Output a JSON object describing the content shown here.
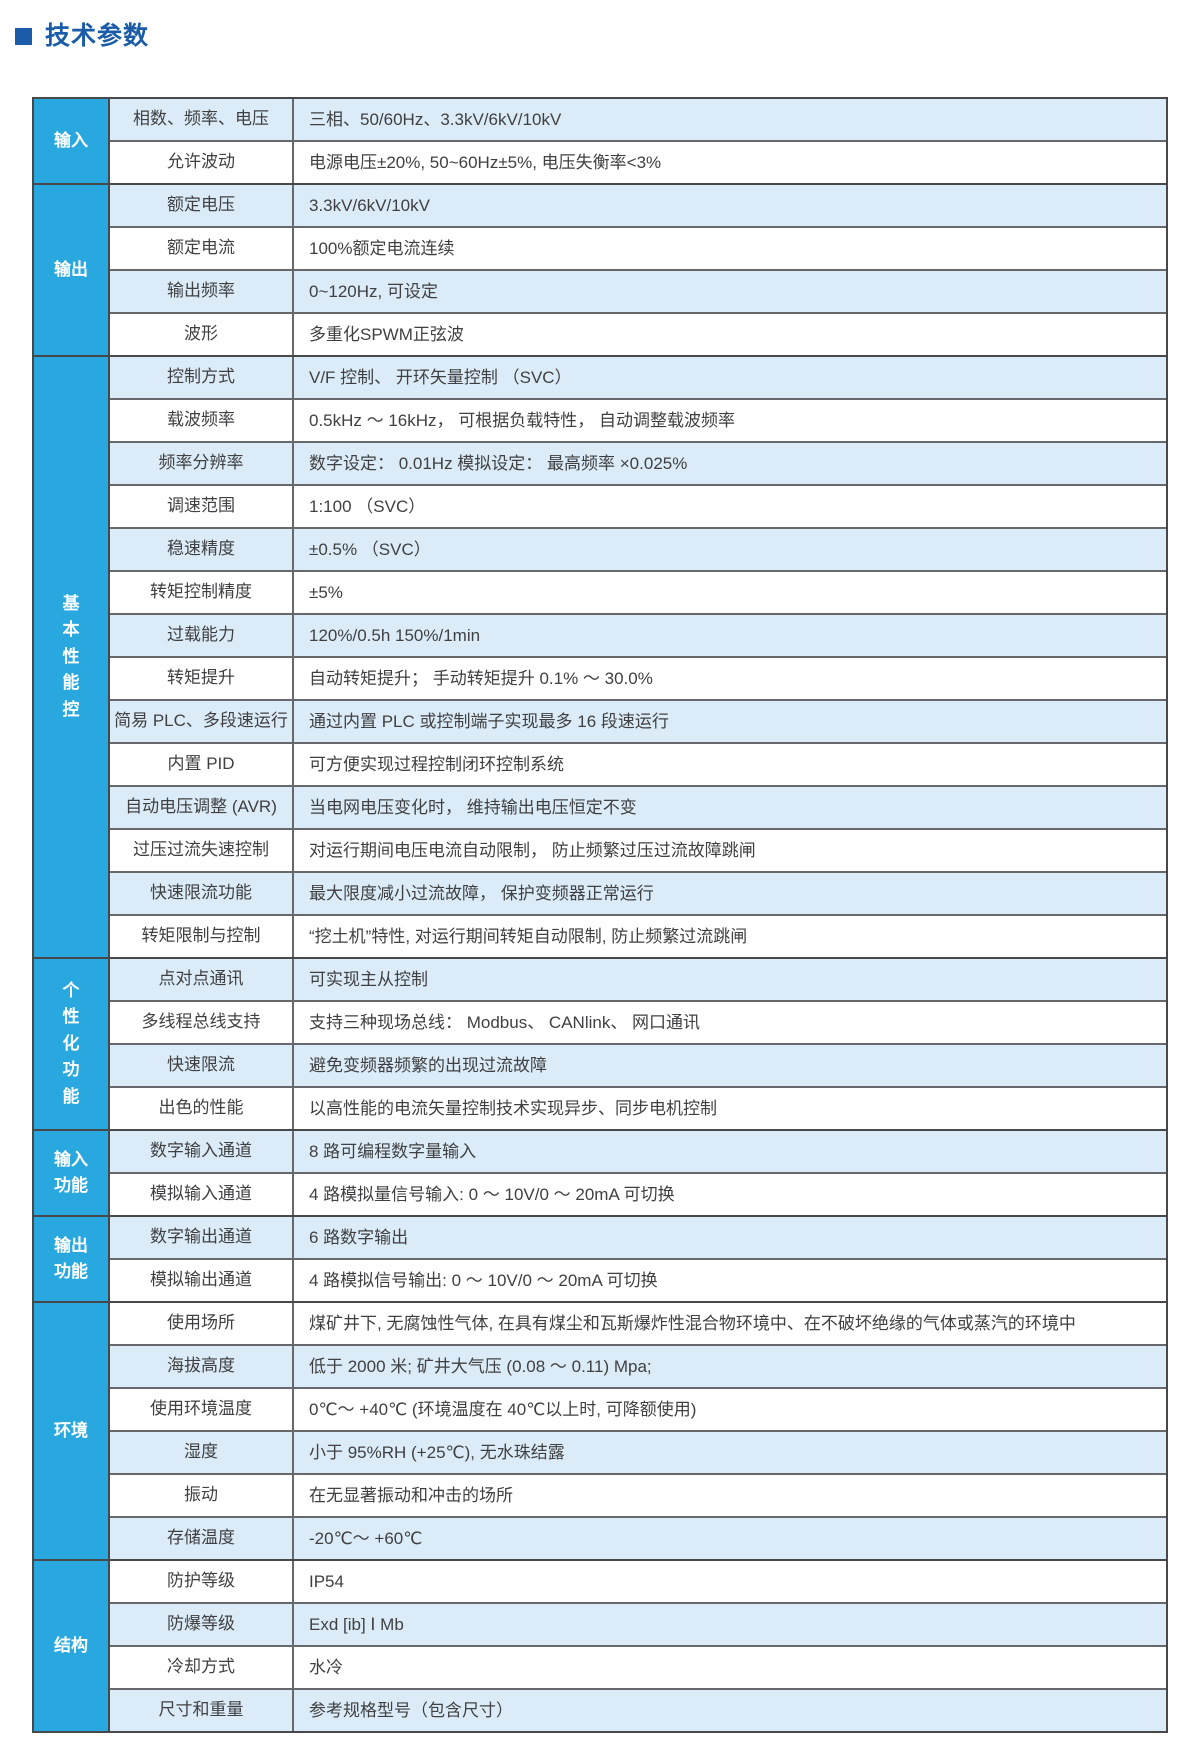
{
  "page": {
    "title": "技术参数"
  },
  "colors": {
    "title_blue": "#1a5ca8",
    "category_blue": "#29a8e0",
    "row_shade_blue": "#dbecf8",
    "border_dark": "#47484a",
    "border_inner": "#67686b",
    "text": "#404042"
  },
  "table": {
    "sections": [
      {
        "category": "输入",
        "category_lines": [
          "输入"
        ],
        "rows": [
          {
            "param": "相数、频率、电压",
            "value": "三相、50/60Hz、3.3kV/6kV/10kV",
            "shaded": true
          },
          {
            "param": "允许波动",
            "value": "电源电压±20%, 50~60Hz±5%, 电压失衡率<3%",
            "shaded": false
          }
        ]
      },
      {
        "category": "输出",
        "category_lines": [
          "输出"
        ],
        "rows": [
          {
            "param": "额定电压",
            "value": "3.3kV/6kV/10kV",
            "shaded": true
          },
          {
            "param": "额定电流",
            "value": "100%额定电流连续",
            "shaded": false
          },
          {
            "param": "输出频率",
            "value": "0~120Hz, 可设定",
            "shaded": true
          },
          {
            "param": "波形",
            "value": "多重化SPWM正弦波",
            "shaded": false
          }
        ]
      },
      {
        "category": "基本性能控",
        "category_lines": [
          "基",
          "本",
          "性",
          "能",
          "控"
        ],
        "rows": [
          {
            "param": "控制方式",
            "value": "V/F 控制、 开环矢量控制 （SVC）",
            "shaded": true
          },
          {
            "param": "载波频率",
            "value": "0.5kHz ～ 16kHz， 可根据负载特性， 自动调整载波频率",
            "shaded": false
          },
          {
            "param": "频率分辨率",
            "value": "数字设定： 0.01Hz 模拟设定： 最高频率 ×0.025%",
            "shaded": true
          },
          {
            "param": "调速范围",
            "value": "1:100 （SVC）",
            "shaded": false
          },
          {
            "param": "稳速精度",
            "value": "±0.5% （SVC）",
            "shaded": true
          },
          {
            "param": "转矩控制精度",
            "value": "±5%",
            "shaded": false
          },
          {
            "param": "过载能力",
            "value": "120%/0.5h  150%/1min",
            "shaded": true
          },
          {
            "param": "转矩提升",
            "value": "自动转矩提升； 手动转矩提升 0.1% ～ 30.0%",
            "shaded": false
          },
          {
            "param": "简易 PLC、多段速运行",
            "value": "通过内置 PLC 或控制端子实现最多 16 段速运行",
            "shaded": true
          },
          {
            "param": "内置 PID",
            "value": "可方便实现过程控制闭环控制系统",
            "shaded": false
          },
          {
            "param": "自动电压调整 (AVR)",
            "value": "当电网电压变化时， 维持输出电压恒定不变",
            "shaded": true
          },
          {
            "param": "过压过流失速控制",
            "value": "对运行期间电压电流自动限制， 防止频繁过压过流故障跳闸",
            "shaded": false
          },
          {
            "param": "快速限流功能",
            "value": "最大限度减小过流故障， 保护变频器正常运行",
            "shaded": true
          },
          {
            "param": "转矩限制与控制",
            "value": "“挖土机”特性, 对运行期间转矩自动限制, 防止频繁过流跳闸",
            "shaded": false
          }
        ]
      },
      {
        "category": "个性化功能",
        "category_lines": [
          "个",
          "性",
          "化",
          "功",
          "能"
        ],
        "rows": [
          {
            "param": "点对点通讯",
            "value": "可实现主从控制",
            "shaded": true
          },
          {
            "param": "多线程总线支持",
            "value": "支持三种现场总线： Modbus、 CANlink、 网口通讯",
            "shaded": false
          },
          {
            "param": "快速限流",
            "value": "避免变频器频繁的出现过流故障",
            "shaded": true
          },
          {
            "param": "出色的性能",
            "value": "以高性能的电流矢量控制技术实现异步、同步电机控制",
            "shaded": false
          }
        ]
      },
      {
        "category": "输入功能",
        "category_lines": [
          "输入",
          "功能"
        ],
        "rows": [
          {
            "param": "数字输入通道",
            "value": "8 路可编程数字量输入",
            "shaded": true
          },
          {
            "param": "模拟输入通道",
            "value": "4 路模拟量信号输入: 0 ～ 10V/0 ～ 20mA 可切换",
            "shaded": false
          }
        ]
      },
      {
        "category": "输出功能",
        "category_lines": [
          "输出",
          "功能"
        ],
        "rows": [
          {
            "param": "数字输出通道",
            "value": "6 路数字输出",
            "shaded": true
          },
          {
            "param": "模拟输出通道",
            "value": "4 路模拟信号输出: 0 ～ 10V/0 ～ 20mA 可切换",
            "shaded": false
          }
        ]
      },
      {
        "category": "环境",
        "category_lines": [
          "环境"
        ],
        "rows": [
          {
            "param": "使用场所",
            "value": "煤矿井下, 无腐蚀性气体, 在具有煤尘和瓦斯爆炸性混合物环境中、在不破坏绝缘的气体或蒸汽的环境中",
            "shaded": false
          },
          {
            "param": "海拔高度",
            "value": "低于 2000 米; 矿井大气压 (0.08 ～ 0.11) Mpa;",
            "shaded": true
          },
          {
            "param": "使用环境温度",
            "value": "0℃～ +40℃ (环境温度在 40℃以上时, 可降额使用)",
            "shaded": false
          },
          {
            "param": "湿度",
            "value": "小于 95%RH (+25℃), 无水珠结露",
            "shaded": true
          },
          {
            "param": "振动",
            "value": "在无显著振动和冲击的场所",
            "shaded": false
          },
          {
            "param": "存储温度",
            "value": "-20℃～ +60℃",
            "shaded": true
          }
        ]
      },
      {
        "category": "结构",
        "category_lines": [
          "结构"
        ],
        "rows": [
          {
            "param": "防护等级",
            "value": "IP54",
            "shaded": false
          },
          {
            "param": "防爆等级",
            "value": "Exd [ib]  Ⅰ  Mb",
            "shaded": true
          },
          {
            "param": "冷却方式",
            "value": "水冷",
            "shaded": false
          },
          {
            "param": "尺寸和重量",
            "value": "参考规格型号（包含尺寸）",
            "shaded": true
          }
        ]
      }
    ]
  }
}
